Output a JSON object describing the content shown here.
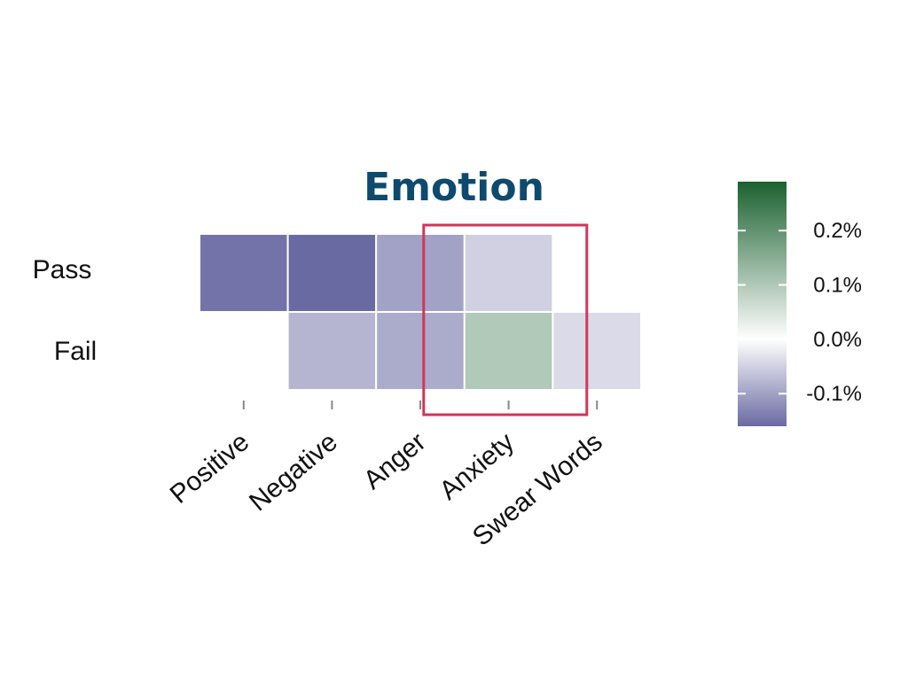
{
  "chart_data": {
    "type": "heatmap",
    "title": "Emotion",
    "colors": {
      "title": "#0d4a6e",
      "negative": "#6a6aa3",
      "neutral": "#ffffff",
      "positive": "#1b6130",
      "highlight": "#d0365a",
      "tick": "#888888"
    },
    "rows": [
      "Pass",
      "Fail"
    ],
    "columns": [
      "Positive",
      "Negative",
      "Anger",
      "Anxiety",
      "Swear Words"
    ],
    "values": [
      [
        -0.15,
        -0.16,
        -0.1,
        -0.05,
        0.0
      ],
      [
        0.0,
        -0.08,
        -0.09,
        0.1,
        -0.04
      ]
    ],
    "colorbar": {
      "min": -0.16,
      "max": 0.29,
      "ticks": [
        0.2,
        0.1,
        0.0,
        -0.1
      ],
      "tick_labels": [
        "0.2%",
        "0.1%",
        "0.0%",
        "-0.1%"
      ]
    },
    "highlight": {
      "column": "Anxiety"
    }
  }
}
